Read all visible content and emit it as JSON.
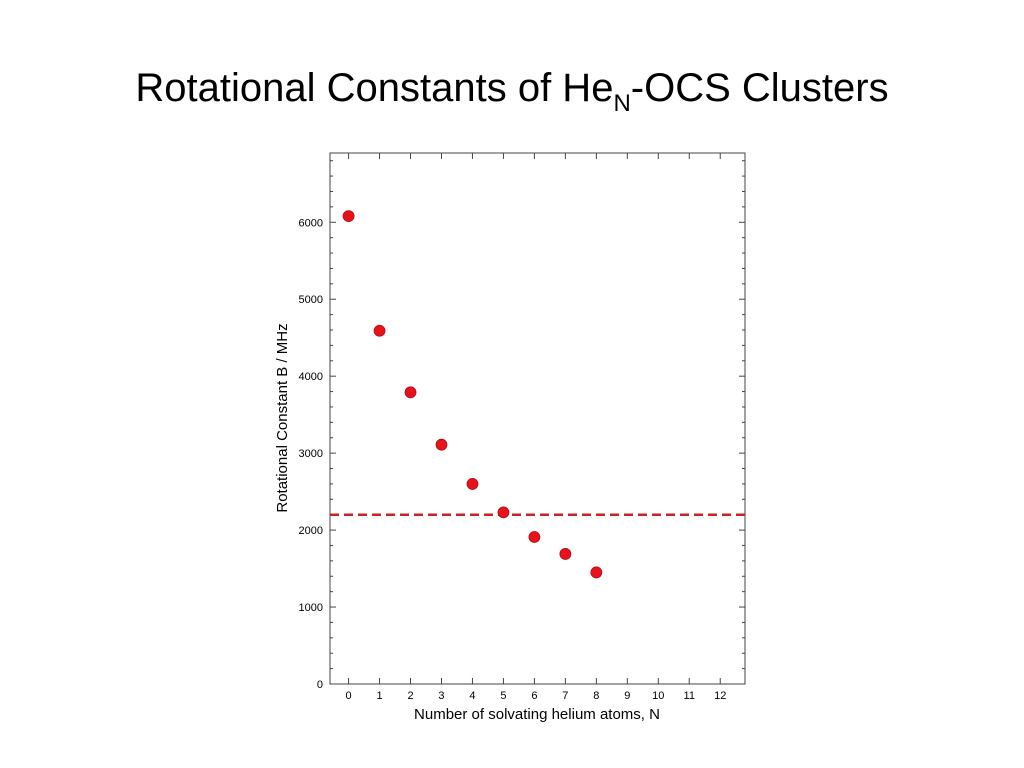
{
  "slide": {
    "title_pre": "Rotational Constants of He",
    "title_sub": "N",
    "title_post": "-OCS Clusters"
  },
  "chart_data": {
    "type": "scatter",
    "title": "",
    "xlabel": "Number of solvating helium atoms, N",
    "ylabel": "Rotational Constant B / MHz",
    "xlim": [
      -0.6,
      12.8
    ],
    "ylim": [
      0,
      6900
    ],
    "x_ticks": [
      0,
      1,
      2,
      3,
      4,
      5,
      6,
      7,
      8,
      9,
      10,
      11,
      12
    ],
    "y_ticks": [
      0,
      1000,
      2000,
      3000,
      4000,
      5000,
      6000
    ],
    "grid": false,
    "legend": "none",
    "marker_color": "#e8121c",
    "series": [
      {
        "x": [
          0,
          1,
          2,
          3,
          4,
          5,
          6,
          7,
          8
        ],
        "values": [
          6080,
          4590,
          3790,
          3110,
          2600,
          2230,
          1910,
          1690,
          1450
        ]
      }
    ],
    "reference_line": {
      "y": 2200,
      "style": "dashed",
      "color": "#cc2222"
    }
  }
}
